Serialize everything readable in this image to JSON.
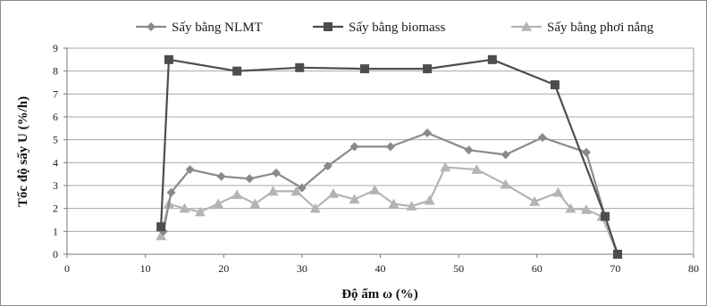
{
  "chart_data": {
    "type": "line",
    "title": "",
    "xlabel": "Độ ẩm ω (%)",
    "ylabel": "Tốc độ sấy U (%/h)",
    "xlim": [
      0,
      80
    ],
    "ylim": [
      0,
      9
    ],
    "xticks": [
      0,
      10,
      20,
      30,
      40,
      50,
      60,
      70,
      80
    ],
    "yticks": [
      0,
      1,
      2,
      3,
      4,
      5,
      6,
      7,
      8,
      9
    ],
    "grid": "horizontal",
    "legend_position": "top",
    "series": [
      {
        "name": "Sấy bằng NLMT",
        "color": "#8a8a8a",
        "marker": "diamond",
        "points": [
          [
            12.3,
            1.0
          ],
          [
            13.3,
            2.7
          ],
          [
            15.7,
            3.7
          ],
          [
            19.7,
            3.4
          ],
          [
            23.3,
            3.3
          ],
          [
            26.7,
            3.55
          ],
          [
            30.0,
            2.9
          ],
          [
            33.3,
            3.85
          ],
          [
            36.7,
            4.7
          ],
          [
            41.3,
            4.7
          ],
          [
            46.0,
            5.3
          ],
          [
            51.3,
            4.55
          ],
          [
            56.0,
            4.35
          ],
          [
            60.7,
            5.1
          ],
          [
            66.3,
            4.45
          ],
          [
            68.7,
            1.65
          ],
          [
            70.3,
            0.0
          ]
        ]
      },
      {
        "name": "Sấy bằng biomass",
        "color": "#4d4d4d",
        "marker": "square",
        "points": [
          [
            12.0,
            1.2
          ],
          [
            13.0,
            8.5
          ],
          [
            21.7,
            8.0
          ],
          [
            29.7,
            8.15
          ],
          [
            38.0,
            8.1
          ],
          [
            46.0,
            8.1
          ],
          [
            54.3,
            8.5
          ],
          [
            62.3,
            7.4
          ],
          [
            68.7,
            1.65
          ],
          [
            70.3,
            0.0
          ]
        ]
      },
      {
        "name": "Sấy bằng phơi nắng",
        "color": "#b4b4b4",
        "marker": "triangle",
        "points": [
          [
            12.0,
            0.8
          ],
          [
            13.0,
            2.2
          ],
          [
            15.0,
            2.0
          ],
          [
            17.0,
            1.85
          ],
          [
            19.3,
            2.2
          ],
          [
            21.7,
            2.6
          ],
          [
            24.0,
            2.2
          ],
          [
            26.3,
            2.75
          ],
          [
            29.3,
            2.75
          ],
          [
            31.7,
            2.0
          ],
          [
            34.0,
            2.65
          ],
          [
            36.7,
            2.4
          ],
          [
            39.3,
            2.8
          ],
          [
            41.7,
            2.2
          ],
          [
            44.0,
            2.1
          ],
          [
            46.3,
            2.35
          ],
          [
            48.3,
            3.8
          ],
          [
            52.3,
            3.7
          ],
          [
            56.0,
            3.05
          ],
          [
            59.7,
            2.3
          ],
          [
            62.7,
            2.7
          ],
          [
            64.3,
            2.0
          ],
          [
            66.3,
            1.95
          ],
          [
            68.3,
            1.65
          ],
          [
            70.3,
            0.0
          ]
        ]
      }
    ]
  }
}
